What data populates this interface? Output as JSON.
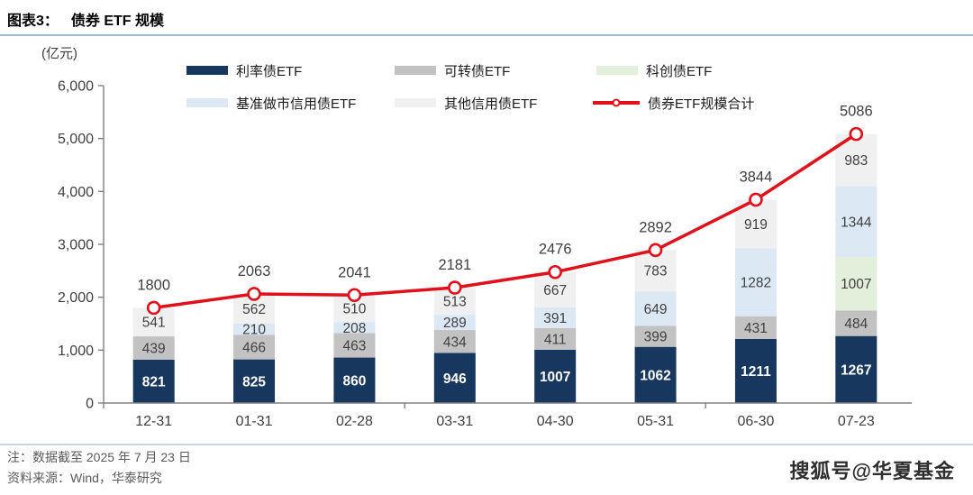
{
  "header": {
    "figure_label": "图表3：",
    "title": "债券 ETF 规模"
  },
  "chart_data": {
    "type": "bar",
    "subtype": "stacked-bars-with-total-line",
    "unit_label": "(亿元)",
    "grid": false,
    "legend_position": "top",
    "categories": [
      "12-31",
      "01-31",
      "02-28",
      "03-31",
      "04-30",
      "05-31",
      "06-30",
      "07-23"
    ],
    "series": [
      {
        "name": "利率债ETF",
        "color": "#17375E",
        "label_color": "#FFFFFF",
        "label_bold": true,
        "values": [
          821,
          825,
          860,
          946,
          1007,
          1062,
          1211,
          1267
        ]
      },
      {
        "name": "可转债ETF",
        "color": "#C2C2C2",
        "label_color": "#404040",
        "label_bold": false,
        "values": [
          439,
          466,
          463,
          434,
          411,
          399,
          431,
          484
        ]
      },
      {
        "name": "科创债ETF",
        "color": "#E2EFDA",
        "label_color": "#404040",
        "label_bold": false,
        "values": [
          0,
          0,
          0,
          0,
          0,
          0,
          0,
          1007
        ]
      },
      {
        "name": "基准做市信用债ETF",
        "color": "#DCE9F5",
        "label_color": "#404040",
        "label_bold": false,
        "values": [
          0,
          210,
          208,
          289,
          391,
          649,
          1282,
          1344
        ]
      },
      {
        "name": "其他信用债ETF",
        "color": "#F0F0F0",
        "label_color": "#404040",
        "label_bold": false,
        "values": [
          541,
          562,
          510,
          513,
          667,
          783,
          919,
          983
        ]
      }
    ],
    "line_series": {
      "name": "债券ETF规模合计",
      "color": "#E0111A",
      "values": [
        1800,
        2063,
        2041,
        2181,
        2476,
        2892,
        3844,
        5086
      ]
    },
    "ylim": [
      0,
      6000
    ],
    "ytick_labels": [
      "0",
      "1,000",
      "2,000",
      "3,000",
      "4,000",
      "5,000",
      "6,000"
    ],
    "axis_color": "#808080",
    "tick_label_color": "#404040"
  },
  "legend": {
    "items": [
      {
        "label": "利率债ETF",
        "color": "#17375E",
        "type": "box"
      },
      {
        "label": "可转债ETF",
        "color": "#C2C2C2",
        "type": "box"
      },
      {
        "label": "科创债ETF",
        "color": "#E2EFDA",
        "type": "box"
      },
      {
        "label": "基准做市信用债ETF",
        "color": "#DCE9F5",
        "type": "box"
      },
      {
        "label": "其他信用债ETF",
        "color": "#F0F0F0",
        "type": "box"
      },
      {
        "label": "债券ETF规模合计",
        "color": "#E0111A",
        "type": "line"
      }
    ]
  },
  "notes": {
    "note": "注：数据截至 2025 年 7 月 23 日",
    "source": "资料来源：Wind，华泰研究"
  },
  "watermark": "搜狐号@华夏基金"
}
